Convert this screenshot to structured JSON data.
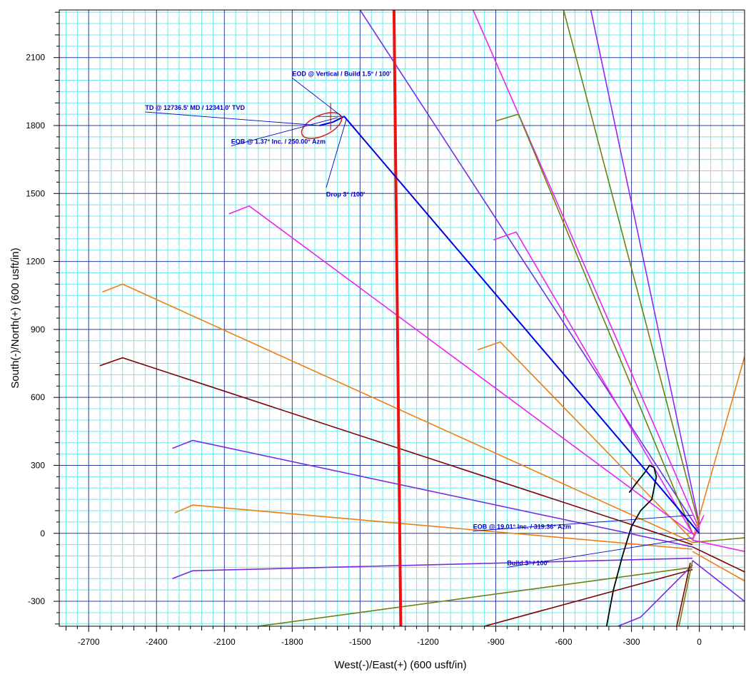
{
  "chart_data": {
    "type": "line",
    "title": "",
    "xlabel": "West(-)/East(+) (600 usft/in)",
    "ylabel": "South(-)/North(+) (600 usft/in)",
    "xlim": [
      -2830,
      200
    ],
    "ylim": [
      -410,
      2310
    ],
    "x_ticks": [
      -2700,
      -2400,
      -2100,
      -1800,
      -1500,
      -1200,
      -900,
      -600,
      -300,
      0
    ],
    "y_ticks": [
      -300,
      0,
      300,
      600,
      900,
      1200,
      1500,
      1800,
      2100
    ],
    "grid": true,
    "colors": {
      "major_grid": "#2a3f9a",
      "minor_grid": "#6fe8ec",
      "lease_line": "#ee1111",
      "plan": "#0000dd",
      "uncertainty": "#cc2222",
      "annotation": "#0000cc"
    },
    "lease_line": [
      [
        -1350,
        2310
      ],
      [
        -1320,
        -410
      ]
    ],
    "plan_path": [
      [
        0,
        0
      ],
      [
        -1570,
        1840
      ],
      [
        -1620,
        1815
      ],
      [
        -1680,
        1800
      ]
    ],
    "uncertainty_ellipse": {
      "center": [
        -1670,
        1800
      ],
      "rx": 95,
      "ry": 45,
      "rotation_deg": -25
    },
    "target_cross": {
      "center": [
        -1630,
        1840
      ],
      "half_size": 60
    },
    "offset_wells": [
      {
        "color": "#9922ee",
        "points": [
          [
            0,
            40
          ],
          [
            -480,
            2310
          ]
        ]
      },
      {
        "color": "#6f7f10",
        "points": [
          [
            0,
            30
          ],
          [
            -600,
            2310
          ]
        ]
      },
      {
        "color": "#ee22ee",
        "points": [
          [
            0,
            20
          ],
          [
            -1000,
            2310
          ]
        ]
      },
      {
        "color": "#7a2be0",
        "points": [
          [
            0,
            10
          ],
          [
            -1500,
            2310
          ]
        ]
      },
      {
        "color": "#6f7f10",
        "points": [
          [
            -30,
            0
          ],
          [
            -800,
            1850
          ],
          [
            -900,
            1820
          ]
        ]
      },
      {
        "color": "#ee22ee",
        "points": [
          [
            -30,
            0
          ],
          [
            -810,
            1330
          ],
          [
            -910,
            1295
          ]
        ]
      },
      {
        "color": "#ee22ee",
        "points": [
          [
            -20,
            -10
          ],
          [
            -1990,
            1445
          ],
          [
            -2080,
            1410
          ]
        ]
      },
      {
        "color": "#f07d10",
        "points": [
          [
            -30,
            -30
          ],
          [
            -880,
            845
          ],
          [
            -980,
            810
          ]
        ]
      },
      {
        "color": "#f07d10",
        "points": [
          [
            -30,
            -40
          ],
          [
            -2550,
            1100
          ],
          [
            -2640,
            1065
          ]
        ]
      },
      {
        "color": "#800000",
        "points": [
          [
            -30,
            -50
          ],
          [
            -2550,
            775
          ],
          [
            -2650,
            740
          ]
        ]
      },
      {
        "color": "#7a2be0",
        "points": [
          [
            -30,
            -60
          ],
          [
            -2240,
            410
          ],
          [
            -2330,
            375
          ]
        ]
      },
      {
        "color": "#f07d10",
        "points": [
          [
            -30,
            -70
          ],
          [
            -2240,
            125
          ],
          [
            -2320,
            90
          ]
        ]
      },
      {
        "color": "#7a2be0",
        "points": [
          [
            -30,
            -110
          ],
          [
            -2240,
            -165
          ],
          [
            -2330,
            -200
          ]
        ]
      },
      {
        "color": "#6f7f10",
        "points": [
          [
            -30,
            -150
          ],
          [
            -1950,
            -410
          ]
        ]
      },
      {
        "color": "#800000",
        "points": [
          [
            -30,
            -160
          ],
          [
            -950,
            -410
          ]
        ]
      },
      {
        "color": "#7a2be0",
        "points": [
          [
            -30,
            -140
          ],
          [
            -260,
            -370
          ],
          [
            -360,
            -410
          ]
        ]
      },
      {
        "color": "#800000",
        "points": [
          [
            -100,
            -410
          ],
          [
            -40,
            -130
          ]
        ]
      },
      {
        "color": "#6f7f10",
        "points": [
          [
            -90,
            -410
          ],
          [
            -30,
            -120
          ]
        ]
      },
      {
        "color": "#ee22ee",
        "points": [
          [
            -30,
            -30
          ],
          [
            200,
            -80
          ]
        ]
      },
      {
        "color": "#6f7f10",
        "points": [
          [
            -30,
            -40
          ],
          [
            200,
            -20
          ]
        ]
      },
      {
        "color": "#800000",
        "points": [
          [
            -30,
            -60
          ],
          [
            200,
            -170
          ]
        ]
      },
      {
        "color": "#f07d10",
        "points": [
          [
            -30,
            -80
          ],
          [
            200,
            -210
          ]
        ]
      },
      {
        "color": "#7a2be0",
        "points": [
          [
            -30,
            -120
          ],
          [
            200,
            -300
          ]
        ]
      },
      {
        "color": "#f07d10",
        "points": [
          [
            -30,
            -30
          ],
          [
            200,
            780
          ]
        ]
      },
      {
        "color": "#ee22ee",
        "points": [
          [
            -30,
            -30
          ],
          [
            20,
            80
          ]
        ]
      }
    ],
    "black_path": [
      [
        -410,
        -410
      ],
      [
        -380,
        -250
      ],
      [
        -340,
        -100
      ],
      [
        -300,
        30
      ],
      [
        -260,
        100
      ],
      [
        -210,
        150
      ],
      [
        -190,
        250
      ],
      [
        -200,
        290
      ],
      [
        -220,
        300
      ],
      [
        -240,
        270
      ],
      [
        -280,
        220
      ],
      [
        -310,
        180
      ]
    ],
    "annotations": [
      {
        "text": "EOD @ Vertical / Build 1.5° / 100'",
        "label_at": [
          -1800,
          2010
        ],
        "point_at": [
          -1580,
          1840
        ]
      },
      {
        "text": "TD @ 12736.5' MD / 12341.0' TVD",
        "label_at": [
          -2450,
          1860
        ],
        "point_at": [
          -1680,
          1800
        ]
      },
      {
        "text": "EOB @ 1.37° Inc. / 250.00° Azm",
        "label_at": [
          -2070,
          1710
        ],
        "point_at": [
          -1600,
          1835
        ]
      },
      {
        "text": "Drop 3° /100'",
        "label_at": [
          -1650,
          1525
        ],
        "point_at": [
          -1560,
          1830
        ]
      },
      {
        "text": "EOB @ 19.01° Inc. / 319.36° Azm",
        "label_at": [
          -1000,
          10
        ],
        "point_at": [
          -30,
          80
        ]
      },
      {
        "text": "Build 3° / 100'",
        "label_at": [
          -850,
          -150
        ],
        "point_at": [
          -30,
          -20
        ]
      }
    ]
  }
}
